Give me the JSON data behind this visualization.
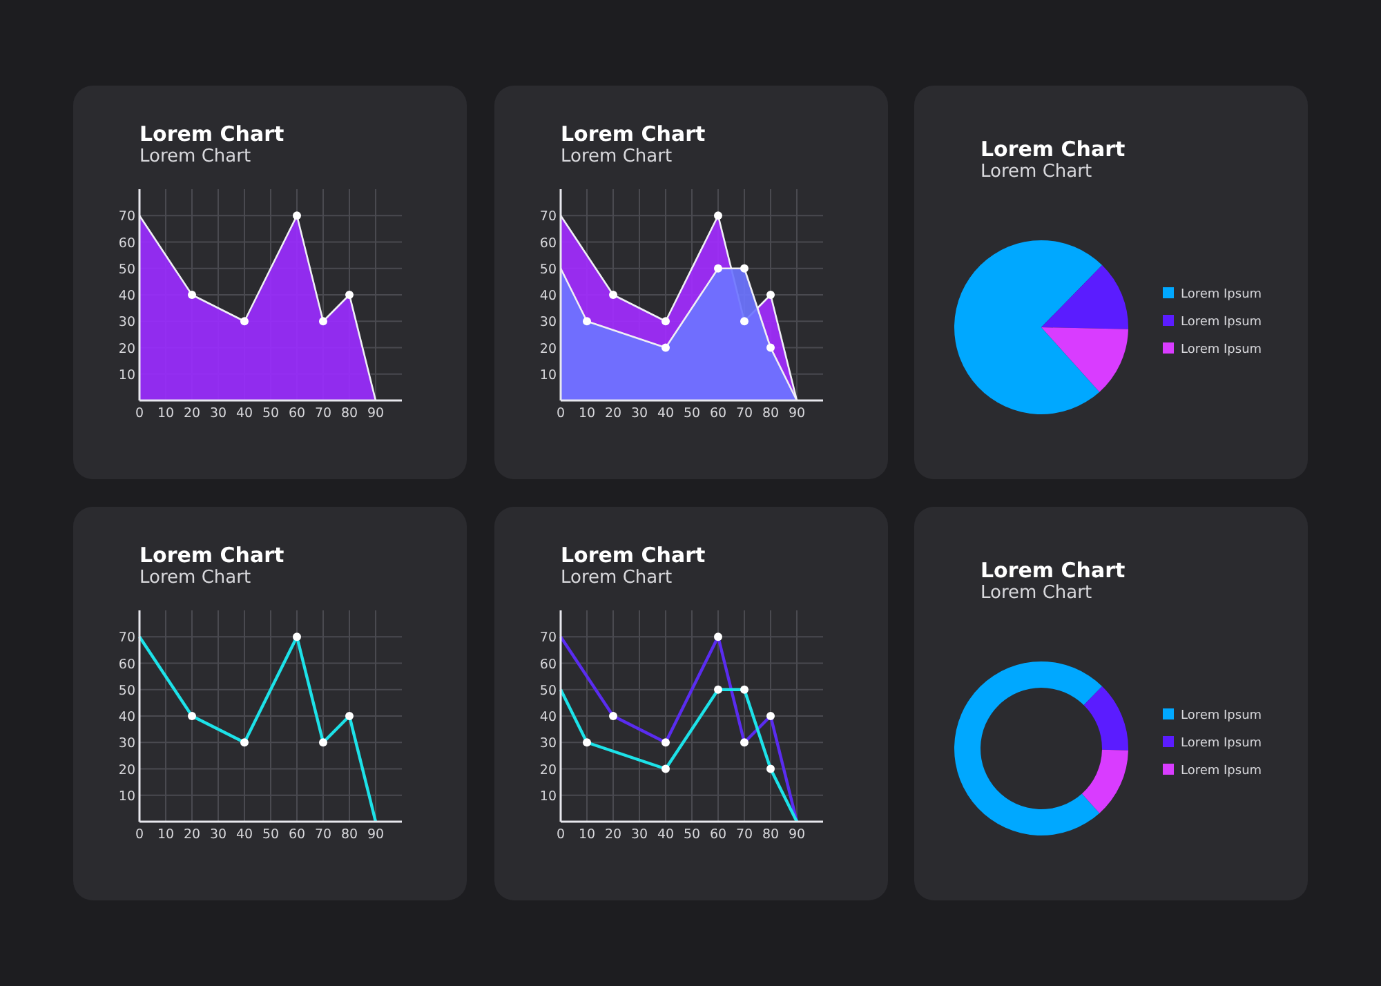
{
  "chart_data": [
    {
      "type": "area",
      "title": "Lorem Chart",
      "subtitle": "Lorem Chart",
      "xlim": [
        0,
        100
      ],
      "xticks": [
        0,
        10,
        20,
        30,
        40,
        50,
        60,
        70,
        80,
        90
      ],
      "ylim": [
        0,
        80
      ],
      "yticks": [
        10,
        20,
        30,
        40,
        50,
        60,
        70
      ],
      "grid": true,
      "marker": "circle",
      "series": [
        {
          "color": "#9a2cff",
          "x": [
            0,
            20,
            40,
            60,
            70,
            80,
            90
          ],
          "values": [
            70,
            40,
            30,
            70,
            30,
            40,
            0
          ]
        }
      ]
    },
    {
      "type": "area",
      "title": "Lorem Chart",
      "subtitle": "Lorem Chart",
      "xlim": [
        0,
        100
      ],
      "xticks": [
        0,
        10,
        20,
        30,
        40,
        50,
        60,
        70,
        80,
        90
      ],
      "ylim": [
        0,
        80
      ],
      "yticks": [
        10,
        20,
        30,
        40,
        50,
        60,
        70
      ],
      "grid": true,
      "marker": "circle",
      "series": [
        {
          "color": "#a22cff",
          "x": [
            0,
            20,
            40,
            60,
            70,
            80,
            90
          ],
          "values": [
            70,
            40,
            30,
            70,
            30,
            40,
            0
          ]
        },
        {
          "color": "#6d74ff",
          "x": [
            0,
            10,
            40,
            60,
            70,
            80,
            90
          ],
          "values": [
            50,
            30,
            20,
            50,
            50,
            20,
            0
          ]
        }
      ]
    },
    {
      "type": "pie",
      "title": "Lorem Chart",
      "subtitle": "Lorem Chart",
      "categories": [
        "Lorem Ipsum",
        "Lorem Ipsum",
        "Lorem Ipsum"
      ],
      "values": [
        74,
        13,
        13
      ],
      "colors": [
        "#00a8ff",
        "#5b1cff",
        "#d93cff"
      ],
      "legend": "right"
    },
    {
      "type": "line",
      "title": "Lorem Chart",
      "subtitle": "Lorem Chart",
      "xlim": [
        0,
        100
      ],
      "xticks": [
        0,
        10,
        20,
        30,
        40,
        50,
        60,
        70,
        80,
        90
      ],
      "ylim": [
        0,
        80
      ],
      "yticks": [
        10,
        20,
        30,
        40,
        50,
        60,
        70
      ],
      "grid": true,
      "marker": "circle",
      "line_style": "solid",
      "series": [
        {
          "color": "#1de2e8",
          "x": [
            0,
            20,
            40,
            60,
            70,
            80,
            90
          ],
          "values": [
            70,
            40,
            30,
            70,
            30,
            40,
            0
          ]
        }
      ]
    },
    {
      "type": "line",
      "title": "Lorem Chart",
      "subtitle": "Lorem Chart",
      "xlim": [
        0,
        100
      ],
      "xticks": [
        0,
        10,
        20,
        30,
        40,
        50,
        60,
        70,
        80,
        90
      ],
      "ylim": [
        0,
        80
      ],
      "yticks": [
        10,
        20,
        30,
        40,
        50,
        60,
        70
      ],
      "grid": true,
      "marker": "circle",
      "line_style": "solid",
      "series": [
        {
          "color": "#5a2cf0",
          "x": [
            0,
            20,
            40,
            60,
            70,
            80,
            90
          ],
          "values": [
            70,
            40,
            30,
            70,
            30,
            40,
            0
          ]
        },
        {
          "color": "#1de2e8",
          "x": [
            0,
            10,
            40,
            60,
            70,
            80,
            90
          ],
          "values": [
            50,
            30,
            20,
            50,
            50,
            20,
            0
          ]
        }
      ]
    },
    {
      "type": "donut",
      "title": "Lorem Chart",
      "subtitle": "Lorem Chart",
      "categories": [
        "Lorem Ipsum",
        "Lorem Ipsum",
        "Lorem Ipsum"
      ],
      "values": [
        74,
        13,
        13
      ],
      "colors": [
        "#00a8ff",
        "#5b1cff",
        "#d93cff"
      ],
      "legend": "right"
    }
  ]
}
